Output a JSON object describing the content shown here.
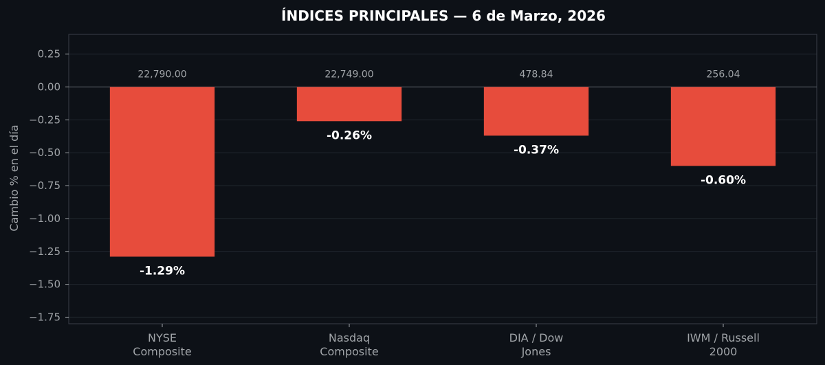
{
  "chart_data": {
    "type": "bar",
    "title": "ÍNDICES PRINCIPALES — 6 de Marzo, 2026",
    "xlabel": "",
    "ylabel": "Cambio % en el día",
    "categories": [
      [
        "NYSE",
        "Composite"
      ],
      [
        "Nasdaq",
        "Composite"
      ],
      [
        "DIA / Dow",
        "Jones"
      ],
      [
        "IWM / Russell",
        "2000"
      ]
    ],
    "values": [
      -1.29,
      -0.26,
      -0.37,
      -0.6
    ],
    "value_labels": [
      "-1.29%",
      "-0.26%",
      "-0.37%",
      "-0.60%"
    ],
    "price_labels": [
      "22,790.00",
      "22,749.00",
      "478.84",
      "256.04"
    ],
    "yticks": [
      0.25,
      0.0,
      -0.25,
      -0.5,
      -0.75,
      -1.0,
      -1.25,
      -1.5,
      -1.75
    ],
    "ytick_labels": [
      "0.25",
      "0.00",
      "−0.25",
      "−0.50",
      "−0.75",
      "−1.00",
      "−1.25",
      "−1.50",
      "−1.75"
    ],
    "ylim": [
      -1.8,
      0.4
    ],
    "grid": true,
    "colors": {
      "background": "#0d1117",
      "bar": "#e74c3c",
      "text": "#ffffff",
      "muted": "#a0a4a8",
      "grid": "#222830",
      "axis": "#3a4048",
      "zero_line": "#5a6068"
    }
  }
}
